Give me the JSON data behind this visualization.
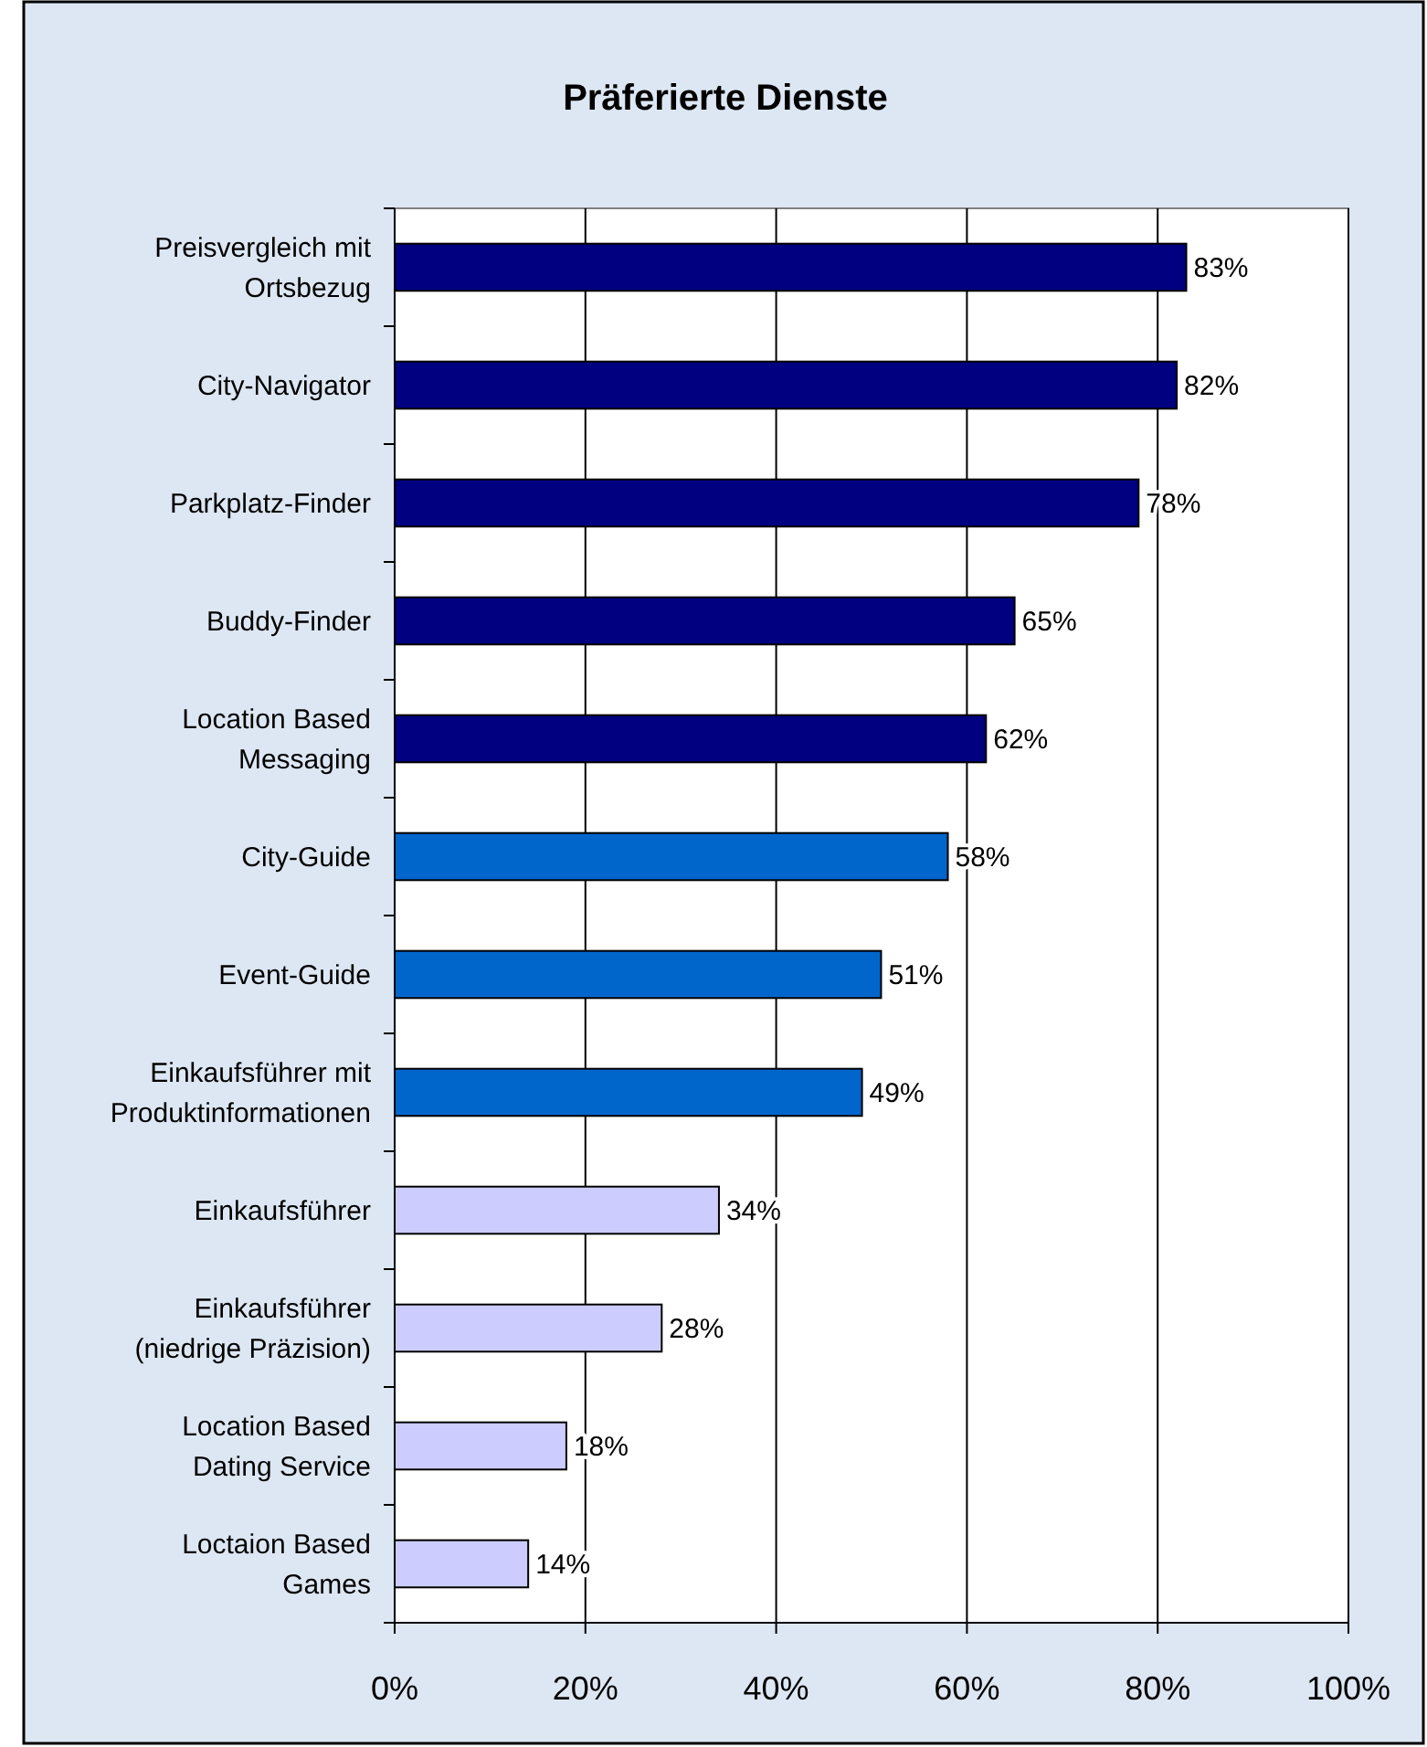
{
  "chart_data": {
    "type": "bar",
    "orientation": "horizontal",
    "title": "Präferierte Dienste",
    "categories": [
      "Preisvergleich mit\nOrtsbezug",
      "City-Navigator",
      "Parkplatz-Finder",
      "Buddy-Finder",
      "Location Based\nMessaging",
      "City-Guide",
      "Event-Guide",
      "Einkaufsführer mit\nProduktinformationen",
      "Einkaufsführer",
      "Einkaufsführer\n(niedrige Präzision)",
      "Location Based\nDating Service",
      "Loctaion Based\nGames"
    ],
    "values": [
      83,
      82,
      78,
      65,
      62,
      58,
      51,
      49,
      34,
      28,
      18,
      14
    ],
    "colors": [
      "#000080",
      "#000080",
      "#000080",
      "#000080",
      "#000080",
      "#0066cc",
      "#0066cc",
      "#0066cc",
      "#ccccff",
      "#ccccff",
      "#ccccff",
      "#ccccff"
    ],
    "value_labels": [
      "83%",
      "82%",
      "78%",
      "65%",
      "62%",
      "58%",
      "51%",
      "49%",
      "34%",
      "28%",
      "18%",
      "14%"
    ],
    "xlim": [
      0,
      100
    ],
    "xticks": [
      {
        "value": 0,
        "label": "0%"
      },
      {
        "value": 20,
        "label": "20%"
      },
      {
        "value": 40,
        "label": "40%"
      },
      {
        "value": 60,
        "label": "60%"
      },
      {
        "value": 80,
        "label": "80%"
      },
      {
        "value": 100,
        "label": "100%"
      }
    ],
    "grid": "x"
  }
}
